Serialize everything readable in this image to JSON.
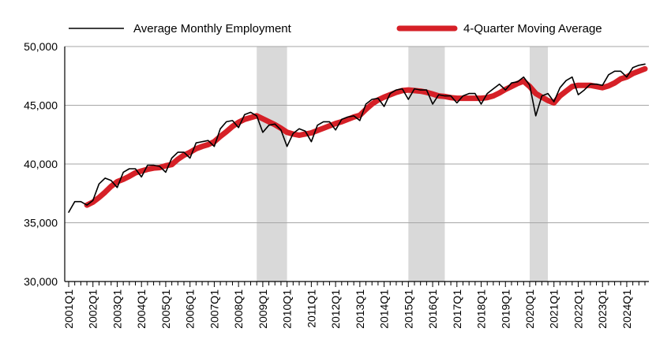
{
  "chart_data": {
    "type": "line",
    "title": "",
    "xlabel": "",
    "ylabel": "",
    "ylim": [
      30000,
      50000
    ],
    "yticks": [
      "30,000",
      "35,000",
      "40,000",
      "45,000",
      "50,000"
    ],
    "ytick_values": [
      30000,
      35000,
      40000,
      45000,
      50000
    ],
    "xtick_labels": [
      "2001Q1",
      "2002Q1",
      "2003Q1",
      "2004Q1",
      "2005Q1",
      "2006Q1",
      "2007Q1",
      "2008Q1",
      "2009Q1",
      "2010Q1",
      "2011Q1",
      "2012Q1",
      "2013Q1",
      "2014Q1",
      "2015Q1",
      "2016Q1",
      "2017Q1",
      "2018Q1",
      "2019Q1",
      "2020Q1",
      "2021Q1",
      "2022Q1",
      "2023Q1",
      "2024Q1"
    ],
    "x_start": "2001Q1",
    "x_end": "2024Q4",
    "grid": "horizontal",
    "legend_position": "top",
    "recessions": [
      {
        "start": "2008Q4",
        "end": "2010Q1"
      },
      {
        "start": "2015Q1",
        "end": "2016Q3"
      },
      {
        "start": "2020Q1",
        "end": "2020Q4"
      }
    ],
    "series": [
      {
        "name": "Average Monthly Employment",
        "color": "#000000",
        "values": [
          35900,
          36800,
          36800,
          36500,
          36900,
          38300,
          38800,
          38600,
          38000,
          39300,
          39600,
          39600,
          38900,
          39900,
          39900,
          39800,
          39300,
          40500,
          41000,
          41000,
          40500,
          41800,
          41900,
          42000,
          41500,
          43000,
          43600,
          43700,
          43100,
          44200,
          44400,
          44100,
          42700,
          43300,
          43400,
          42900,
          41500,
          42600,
          43000,
          42800,
          41900,
          43300,
          43600,
          43600,
          42900,
          43800,
          44000,
          44100,
          43700,
          45100,
          45500,
          45600,
          44900,
          46000,
          46300,
          46400,
          45500,
          46400,
          46300,
          46300,
          45100,
          45900,
          45800,
          45800,
          45200,
          45800,
          46000,
          46000,
          45100,
          46000,
          46400,
          46800,
          46300,
          46900,
          47000,
          47400,
          46700,
          44100,
          45800,
          46000,
          45300,
          46500,
          47100,
          47400,
          45900,
          46300,
          46800,
          46800,
          46700,
          47600,
          47900,
          47900,
          47400,
          48200,
          48400,
          48500
        ]
      },
      {
        "name": "4-Quarter Moving Average",
        "color": "#d62027",
        "values": [
          null,
          null,
          null,
          36500,
          36750,
          37150,
          37600,
          38100,
          38500,
          38700,
          38950,
          39250,
          39400,
          39550,
          39650,
          39700,
          39850,
          39950,
          40400,
          40750,
          41000,
          41300,
          41500,
          41650,
          41900,
          42350,
          42750,
          43200,
          43550,
          43800,
          43950,
          44100,
          43850,
          43600,
          43350,
          43050,
          42700,
          42550,
          42450,
          42550,
          42650,
          42850,
          43050,
          43250,
          43450,
          43600,
          43800,
          44000,
          44150,
          44650,
          45100,
          45450,
          45700,
          45900,
          46100,
          46250,
          46300,
          46250,
          46200,
          46100,
          45950,
          45800,
          45750,
          45650,
          45600,
          45600,
          45600,
          45600,
          45600,
          45650,
          45800,
          46050,
          46350,
          46600,
          46850,
          47050,
          46600,
          46000,
          45700,
          45400,
          45200,
          45800,
          46200,
          46600,
          46700,
          46700,
          46700,
          46600,
          46500,
          46650,
          46900,
          47250,
          47400,
          47700,
          47900,
          48100
        ]
      }
    ]
  }
}
